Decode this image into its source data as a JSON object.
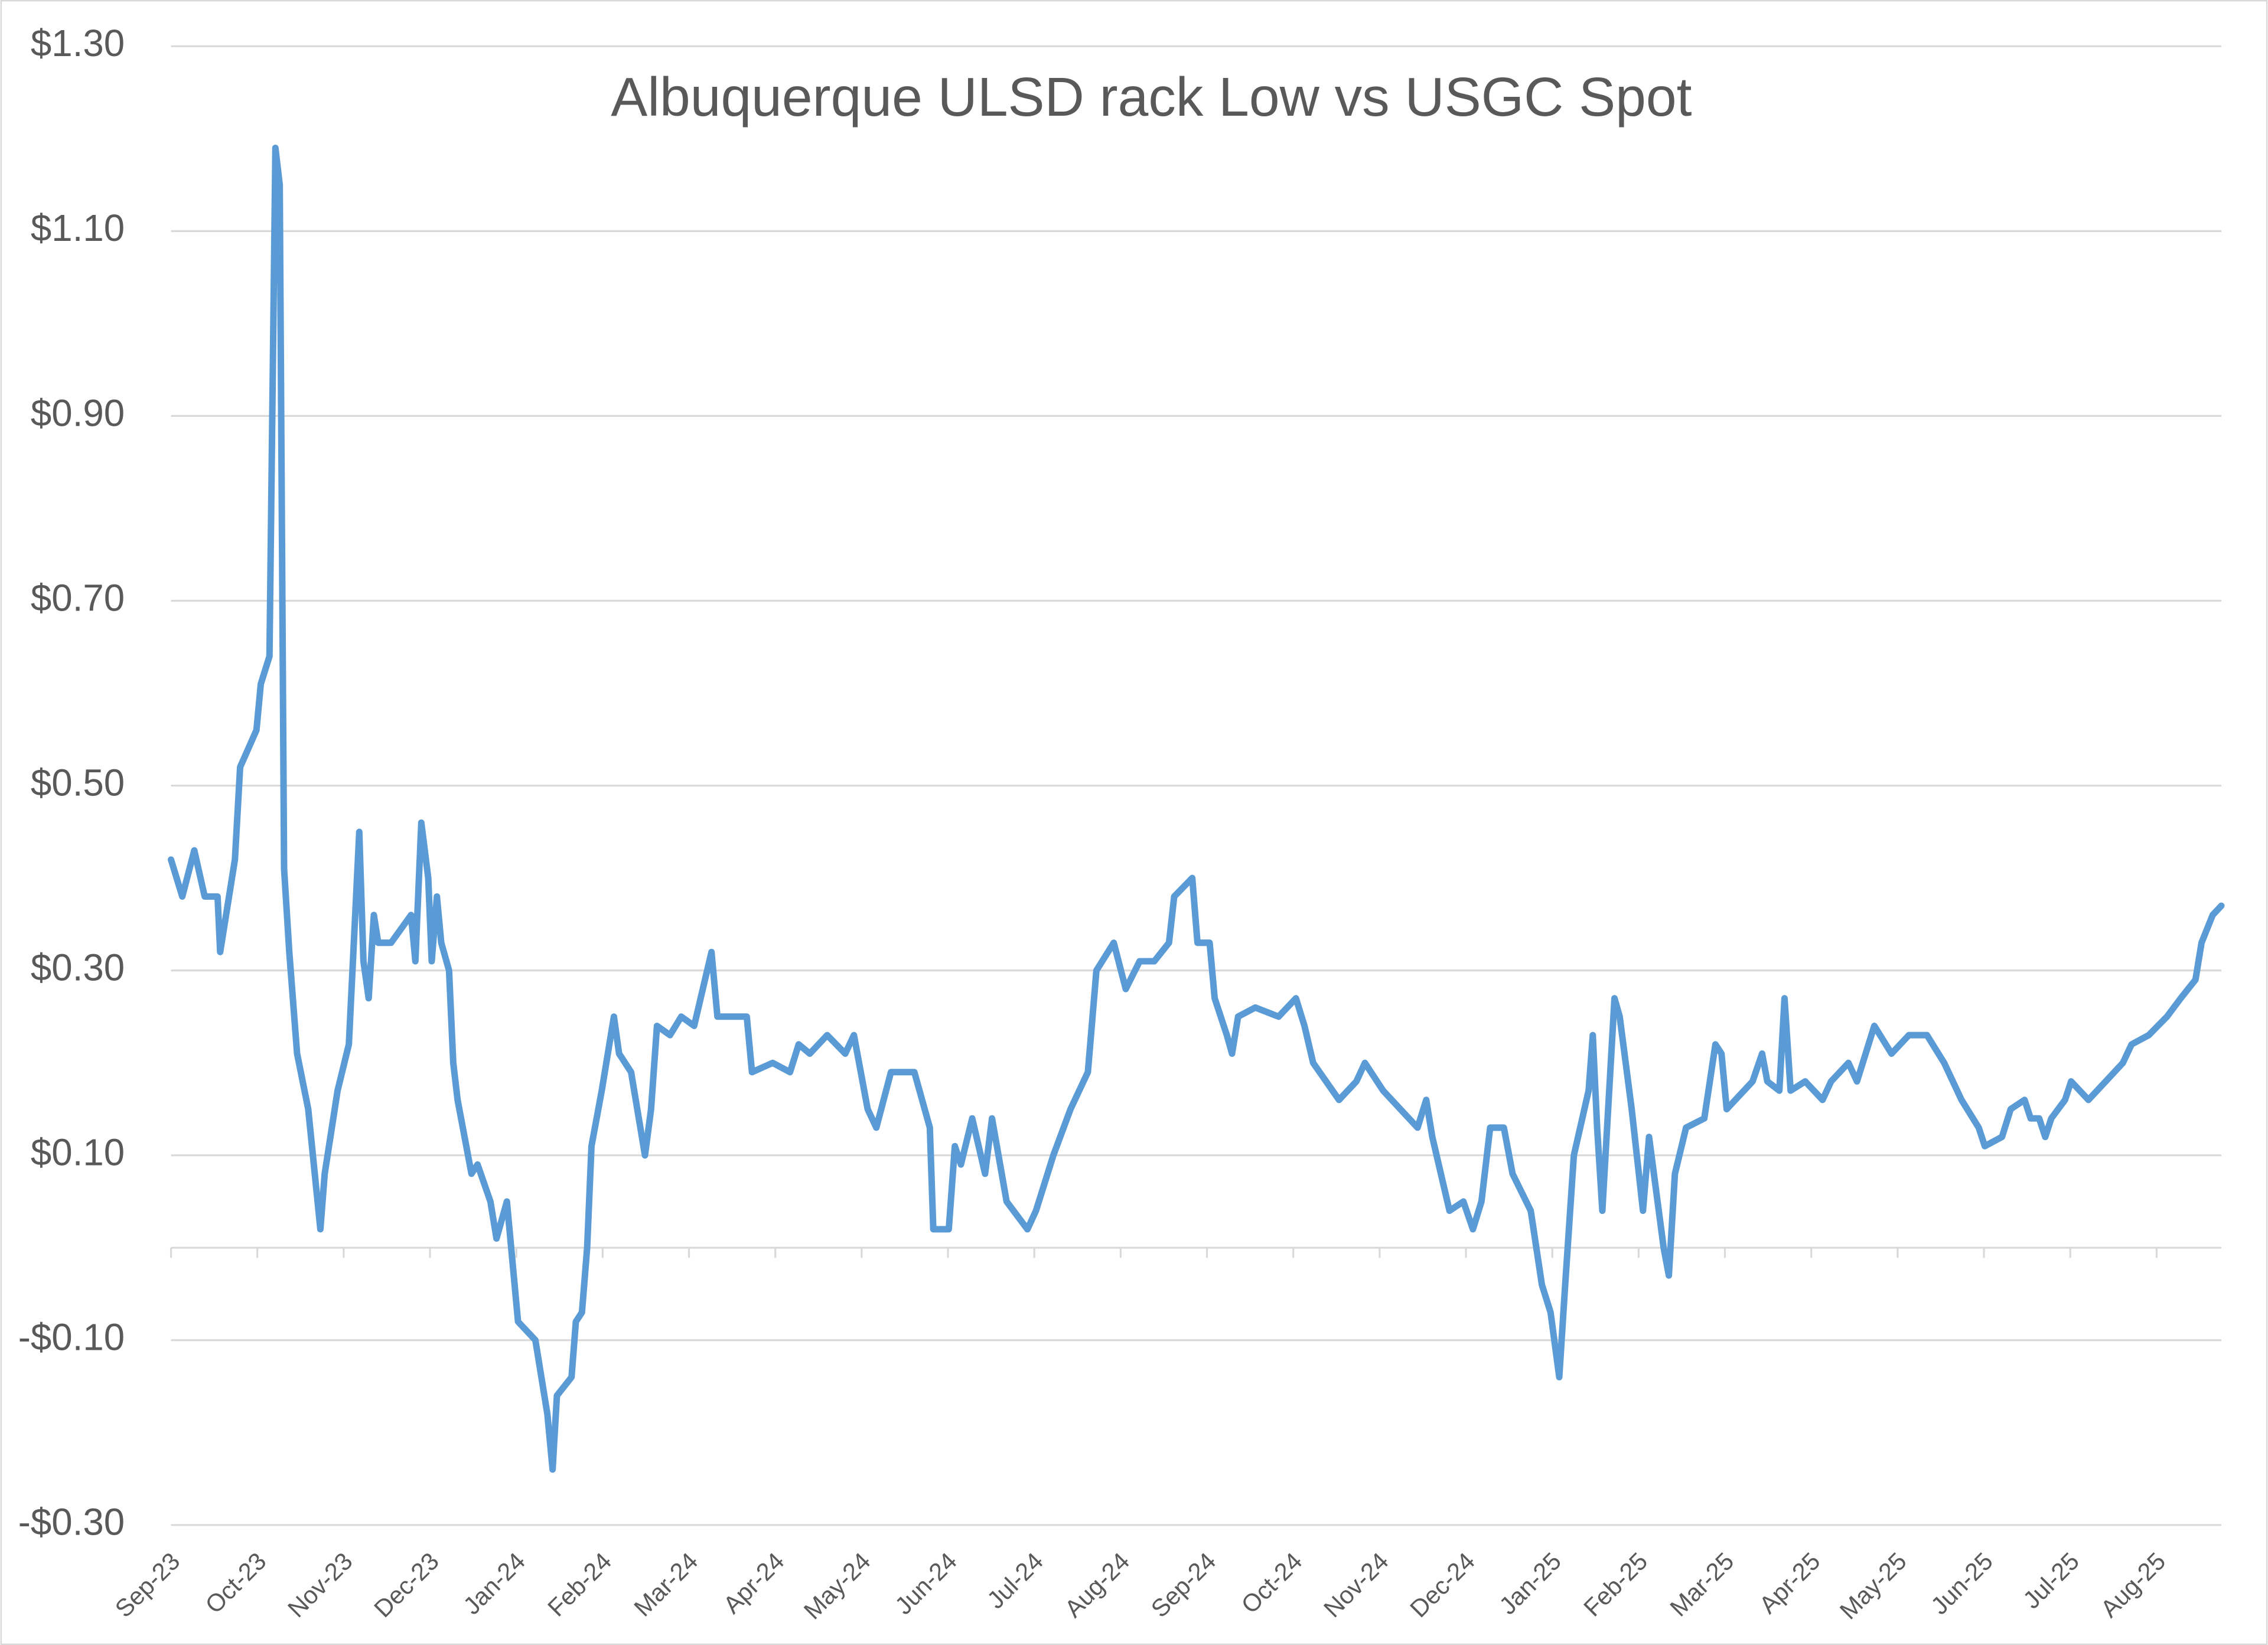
{
  "chart_data": {
    "type": "line",
    "title": "Albuquerque ULSD rack Low vs USGC Spot",
    "xlim": [
      0,
      23.75
    ],
    "xticks": [
      {
        "value": 0,
        "label": "Sep-23"
      },
      {
        "value": 1,
        "label": "Oct-23"
      },
      {
        "value": 2,
        "label": "Nov-23"
      },
      {
        "value": 3,
        "label": "Dec-23"
      },
      {
        "value": 4,
        "label": "Jan-24"
      },
      {
        "value": 5,
        "label": "Feb-24"
      },
      {
        "value": 6,
        "label": "Mar-24"
      },
      {
        "value": 7,
        "label": "Apr-24"
      },
      {
        "value": 8,
        "label": "May-24"
      },
      {
        "value": 9,
        "label": "Jun-24"
      },
      {
        "value": 10,
        "label": "Jul-24"
      },
      {
        "value": 11,
        "label": "Aug-24"
      },
      {
        "value": 12,
        "label": "Sep-24"
      },
      {
        "value": 13,
        "label": "Oct-24"
      },
      {
        "value": 14,
        "label": "Nov-24"
      },
      {
        "value": 15,
        "label": "Dec-24"
      },
      {
        "value": 16,
        "label": "Jan-25"
      },
      {
        "value": 17,
        "label": "Feb-25"
      },
      {
        "value": 18,
        "label": "Mar-25"
      },
      {
        "value": 19,
        "label": "Apr-25"
      },
      {
        "value": 20,
        "label": "May-25"
      },
      {
        "value": 21,
        "label": "Jun-25"
      },
      {
        "value": 22,
        "label": "Jul-25"
      },
      {
        "value": 23,
        "label": "Aug-25"
      }
    ],
    "ylim": [
      -0.3,
      1.3
    ],
    "yticks": [
      {
        "value": 1.3,
        "label": "$1.30"
      },
      {
        "value": 1.1,
        "label": "$1.10"
      },
      {
        "value": 0.9,
        "label": "$0.90"
      },
      {
        "value": 0.7,
        "label": "$0.70"
      },
      {
        "value": 0.5,
        "label": "$0.50"
      },
      {
        "value": 0.3,
        "label": "$0.30"
      },
      {
        "value": 0.1,
        "label": "$0.10"
      },
      {
        "value": -0.1,
        "label": "-$0.10"
      },
      {
        "value": -0.3,
        "label": "-$0.30"
      }
    ],
    "grid": true,
    "series": [
      {
        "color": "#5b9bd5",
        "x": [
          0,
          0.13,
          0.27,
          0.39,
          0.54,
          0.57,
          0.74,
          0.8,
          0.99,
          1.04,
          1.14,
          1.21,
          1.26,
          1.31,
          1.37,
          1.46,
          1.59,
          1.73,
          1.78,
          1.93,
          2.06,
          2.18,
          2.23,
          2.29,
          2.35,
          2.4,
          2.55,
          2.78,
          2.83,
          2.9,
          2.98,
          3.02,
          3.08,
          3.13,
          3.22,
          3.27,
          3.32,
          3.48,
          3.55,
          3.7,
          3.77,
          3.89,
          4.02,
          4.22,
          4.36,
          4.42,
          4.47,
          4.64,
          4.69,
          4.76,
          4.82,
          4.87,
          4.99,
          5.13,
          5.19,
          5.33,
          5.49,
          5.56,
          5.63,
          5.78,
          5.91,
          6.06,
          6.26,
          6.33,
          6.48,
          6.67,
          6.73,
          6.97,
          7.17,
          7.27,
          7.4,
          7.6,
          7.81,
          7.91,
          8.07,
          8.17,
          8.34,
          8.61,
          8.79,
          8.83,
          9.01,
          9.08,
          9.15,
          9.28,
          9.43,
          9.51,
          9.68,
          9.92,
          10.02,
          10.22,
          10.42,
          10.62,
          10.72,
          10.92,
          11.06,
          11.22,
          11.39,
          11.56,
          11.62,
          11.83,
          11.89,
          12.03,
          12.09,
          12.23,
          12.29,
          12.36,
          12.56,
          12.83,
          13.03,
          13.13,
          13.23,
          13.53,
          13.73,
          13.83,
          14.04,
          14.24,
          14.44,
          14.54,
          14.61,
          14.81,
          14.97,
          15.08,
          15.18,
          15.28,
          15.44,
          15.54,
          15.75,
          15.88,
          15.98,
          16.08,
          16.15,
          16.25,
          16.42,
          16.47,
          16.52,
          16.58,
          16.72,
          16.78,
          16.92,
          17.05,
          17.12,
          17.29,
          17.35,
          17.42,
          17.55,
          17.76,
          17.89,
          17.96,
          18.02,
          18.32,
          18.43,
          18.49,
          18.63,
          18.69,
          18.76,
          18.93,
          19.13,
          19.23,
          19.43,
          19.53,
          19.73,
          19.93,
          20.13,
          20.23,
          20.34,
          20.54,
          20.74,
          20.94,
          21.01,
          21.21,
          21.31,
          21.47,
          21.54,
          21.64,
          21.71,
          21.78,
          21.94,
          22.01,
          22.21,
          22.41,
          22.61,
          22.71,
          22.91,
          23.12,
          23.28,
          23.45,
          23.52,
          23.65,
          23.75
        ],
        "values": [
          0.42,
          0.38,
          0.43,
          0.38,
          0.38,
          0.32,
          0.42,
          0.52,
          0.56,
          0.61,
          0.64,
          1.19,
          1.15,
          0.41,
          0.32,
          0.21,
          0.15,
          0.02,
          0.08,
          0.17,
          0.22,
          0.45,
          0.31,
          0.27,
          0.36,
          0.33,
          0.33,
          0.36,
          0.31,
          0.46,
          0.4,
          0.31,
          0.38,
          0.33,
          0.3,
          0.2,
          0.16,
          0.08,
          0.09,
          0.05,
          0.01,
          0.05,
          -0.08,
          -0.1,
          -0.18,
          -0.24,
          -0.16,
          -0.14,
          -0.08,
          -0.07,
          0.0,
          0.11,
          0.17,
          0.25,
          0.21,
          0.19,
          0.1,
          0.15,
          0.24,
          0.23,
          0.25,
          0.24,
          0.32,
          0.25,
          0.25,
          0.25,
          0.19,
          0.2,
          0.19,
          0.22,
          0.21,
          0.23,
          0.21,
          0.23,
          0.15,
          0.13,
          0.19,
          0.19,
          0.13,
          0.02,
          0.02,
          0.11,
          0.09,
          0.14,
          0.08,
          0.14,
          0.05,
          0.02,
          0.04,
          0.1,
          0.15,
          0.19,
          0.3,
          0.33,
          0.28,
          0.31,
          0.31,
          0.33,
          0.38,
          0.4,
          0.33,
          0.33,
          0.27,
          0.23,
          0.21,
          0.25,
          0.26,
          0.25,
          0.27,
          0.24,
          0.2,
          0.16,
          0.18,
          0.2,
          0.17,
          0.15,
          0.13,
          0.16,
          0.12,
          0.04,
          0.05,
          0.02,
          0.05,
          0.13,
          0.13,
          0.08,
          0.04,
          -0.04,
          -0.07,
          -0.14,
          -0.04,
          0.1,
          0.17,
          0.23,
          0.13,
          0.04,
          0.27,
          0.25,
          0.15,
          0.04,
          0.12,
          0.0,
          -0.03,
          0.08,
          0.13,
          0.14,
          0.22,
          0.21,
          0.15,
          0.18,
          0.21,
          0.18,
          0.17,
          0.27,
          0.17,
          0.18,
          0.16,
          0.18,
          0.2,
          0.18,
          0.24,
          0.21,
          0.23,
          0.23,
          0.23,
          0.2,
          0.16,
          0.13,
          0.11,
          0.12,
          0.15,
          0.16,
          0.14,
          0.14,
          0.12,
          0.14,
          0.16,
          0.18,
          0.16,
          0.18,
          0.2,
          0.22,
          0.23,
          0.25,
          0.27,
          0.29,
          0.33,
          0.36,
          0.37
        ]
      }
    ]
  }
}
